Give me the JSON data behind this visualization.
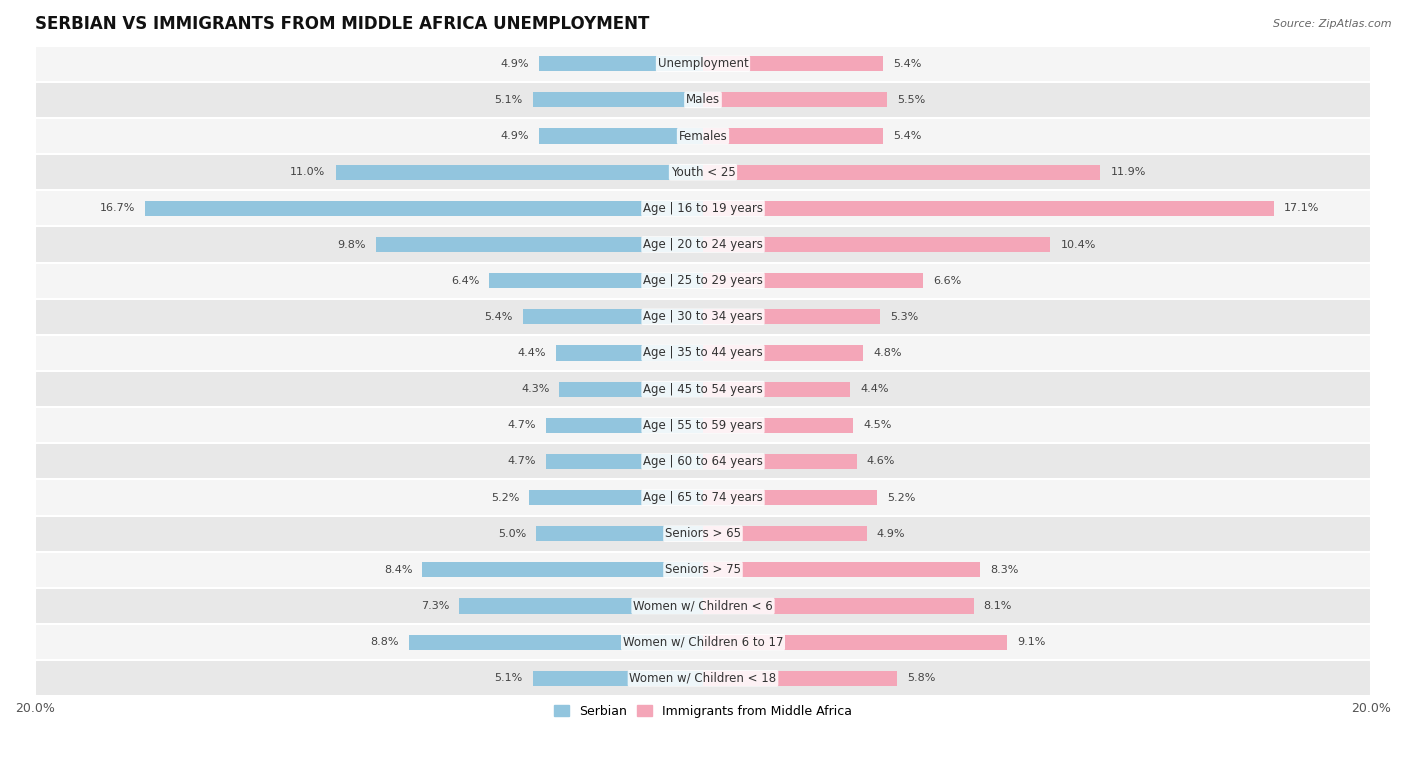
{
  "title": "SERBIAN VS IMMIGRANTS FROM MIDDLE AFRICA UNEMPLOYMENT",
  "source": "Source: ZipAtlas.com",
  "categories": [
    "Unemployment",
    "Males",
    "Females",
    "Youth < 25",
    "Age | 16 to 19 years",
    "Age | 20 to 24 years",
    "Age | 25 to 29 years",
    "Age | 30 to 34 years",
    "Age | 35 to 44 years",
    "Age | 45 to 54 years",
    "Age | 55 to 59 years",
    "Age | 60 to 64 years",
    "Age | 65 to 74 years",
    "Seniors > 65",
    "Seniors > 75",
    "Women w/ Children < 6",
    "Women w/ Children 6 to 17",
    "Women w/ Children < 18"
  ],
  "serbian": [
    4.9,
    5.1,
    4.9,
    11.0,
    16.7,
    9.8,
    6.4,
    5.4,
    4.4,
    4.3,
    4.7,
    4.7,
    5.2,
    5.0,
    8.4,
    7.3,
    8.8,
    5.1
  ],
  "immigrants": [
    5.4,
    5.5,
    5.4,
    11.9,
    17.1,
    10.4,
    6.6,
    5.3,
    4.8,
    4.4,
    4.5,
    4.6,
    5.2,
    4.9,
    8.3,
    8.1,
    9.1,
    5.8
  ],
  "serbian_color": "#92c5de",
  "immigrant_color": "#f4a6b8",
  "bar_height": 0.42,
  "xlim": 20.0,
  "row_bg_light": "#f5f5f5",
  "row_bg_dark": "#e8e8e8",
  "title_fontsize": 12,
  "label_fontsize": 8.5,
  "value_fontsize": 8,
  "legend_fontsize": 9
}
